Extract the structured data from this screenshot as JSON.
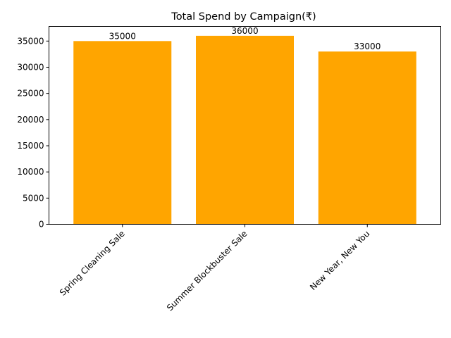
{
  "chart_data": {
    "type": "bar",
    "title": "Total Spend by Campaign(₹)",
    "xlabel": "",
    "ylabel": "",
    "categories": [
      "Spring Cleaning Sale",
      "Summer Blockbuster Sale",
      "New Year, New You"
    ],
    "values": [
      35000,
      36000,
      33000
    ],
    "data_labels": [
      "35000",
      "36000",
      "33000"
    ],
    "ylim": [
      0,
      37800
    ],
    "yticks": [
      0,
      5000,
      10000,
      15000,
      20000,
      25000,
      30000,
      35000
    ],
    "bar_color": "#ffa500",
    "grid": false,
    "legend": "none",
    "x_tick_rotation_deg": 45
  }
}
